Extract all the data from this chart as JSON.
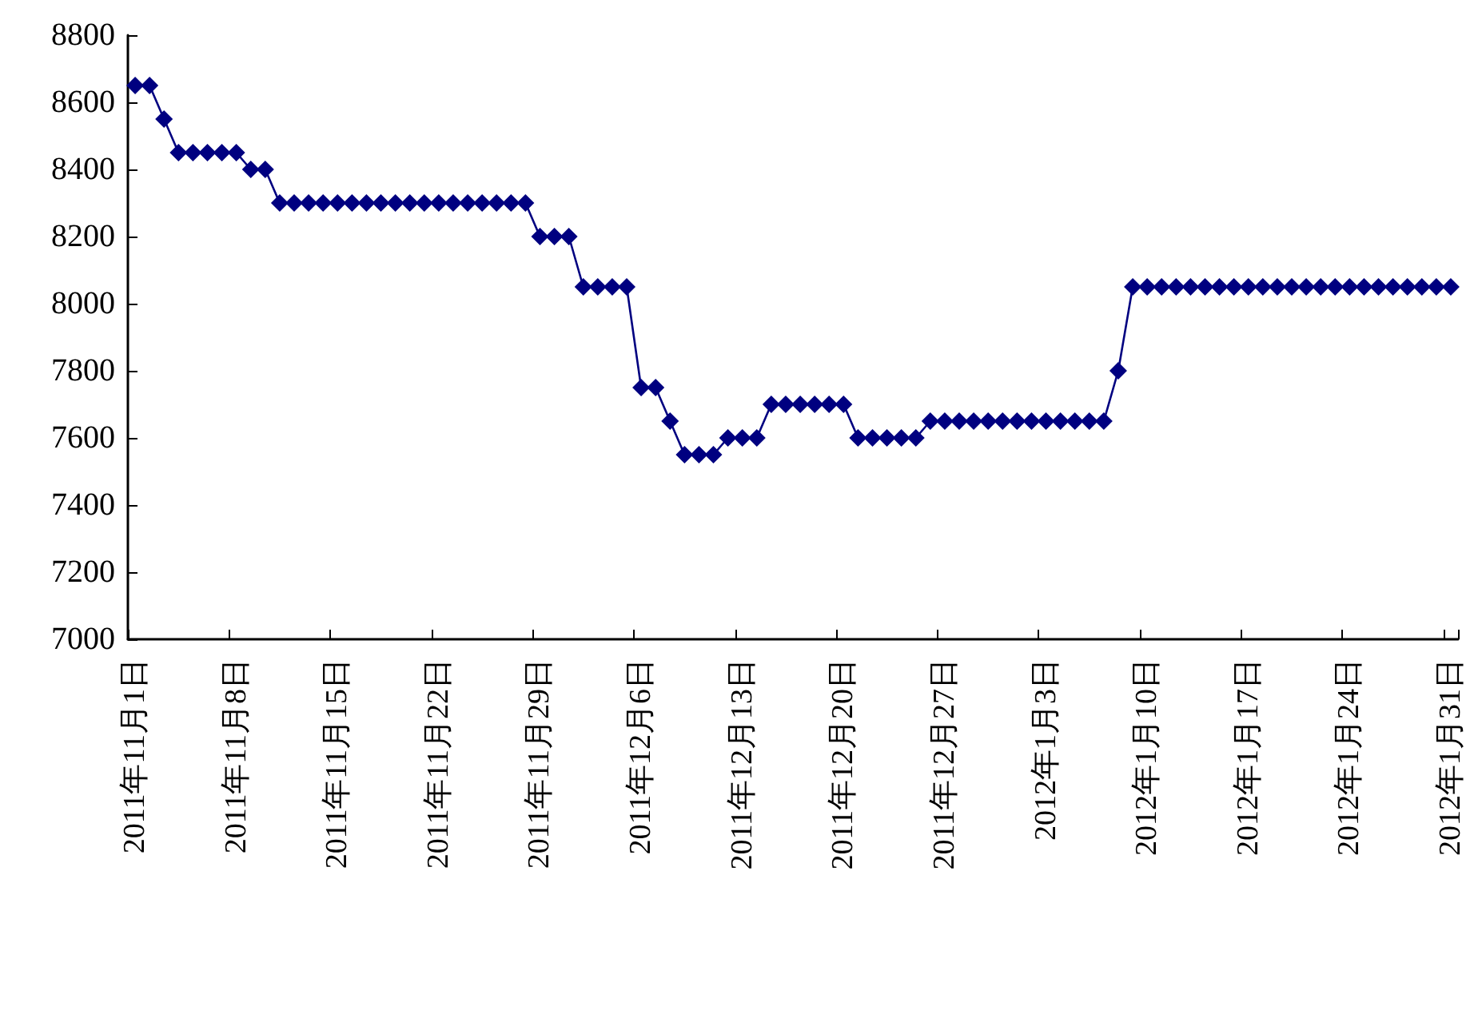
{
  "chart_data": {
    "type": "line",
    "categories": [
      "2011年11月1日",
      null,
      null,
      null,
      null,
      null,
      null,
      "2011年11月8日",
      null,
      null,
      null,
      null,
      null,
      null,
      "2011年11月15日",
      null,
      null,
      null,
      null,
      null,
      null,
      "2011年11月22日",
      null,
      null,
      null,
      null,
      null,
      null,
      "2011年11月29日",
      null,
      null,
      null,
      null,
      null,
      null,
      "2011年12月6日",
      null,
      null,
      null,
      null,
      null,
      null,
      "2011年12月13日",
      null,
      null,
      null,
      null,
      null,
      null,
      "2011年12月20日",
      null,
      null,
      null,
      null,
      null,
      null,
      "2011年12月27日",
      null,
      null,
      null,
      null,
      null,
      null,
      "2012年1月3日",
      null,
      null,
      null,
      null,
      null,
      null,
      "2012年1月10日",
      null,
      null,
      null,
      null,
      null,
      null,
      "2012年1月17日",
      null,
      null,
      null,
      null,
      null,
      null,
      "2012年1月24日",
      null,
      null,
      null,
      null,
      null,
      null,
      "2012年1月31日"
    ],
    "series": [
      {
        "color": "#000080",
        "values": [
          8650,
          8650,
          8550,
          8450,
          8450,
          8450,
          8450,
          8450,
          8400,
          8400,
          8300,
          8300,
          8300,
          8300,
          8300,
          8300,
          8300,
          8300,
          8300,
          8300,
          8300,
          8300,
          8300,
          8300,
          8300,
          8300,
          8300,
          8300,
          8200,
          8200,
          8200,
          8050,
          8050,
          8050,
          8050,
          7750,
          7750,
          7650,
          7550,
          7550,
          7550,
          7600,
          7600,
          7600,
          7700,
          7700,
          7700,
          7700,
          7700,
          7700,
          7600,
          7600,
          7600,
          7600,
          7600,
          7650,
          7650,
          7650,
          7650,
          7650,
          7650,
          7650,
          7650,
          7650,
          7650,
          7650,
          7650,
          7650,
          7800,
          8050,
          8050,
          8050,
          8050,
          8050,
          8050,
          8050,
          8050,
          8050,
          8050,
          8050,
          8050,
          8050,
          8050,
          8050,
          8050,
          8050,
          8050,
          8050,
          8050,
          8050,
          8050,
          8050
        ]
      }
    ],
    "ylim": [
      7000,
      8800
    ],
    "yticks": [
      7000,
      7200,
      7400,
      7600,
      7800,
      8000,
      8200,
      8400,
      8600,
      8800
    ],
    "marker": "diamond",
    "line_style": "solid"
  }
}
